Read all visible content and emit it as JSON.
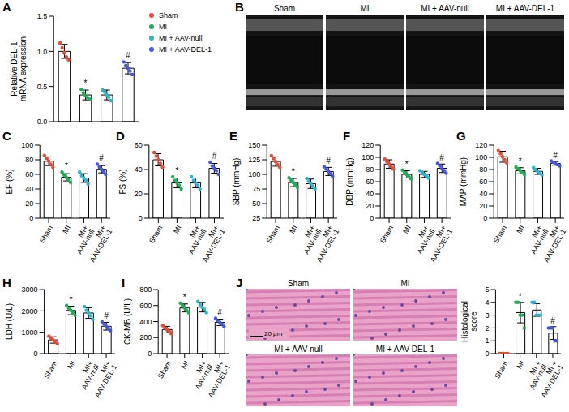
{
  "chart_data": [
    {
      "panel": "A",
      "type": "bar",
      "y_label": "Relative DEL-1 mRNA expression",
      "categories": [
        "Sham",
        "MI",
        "MI + AAV-null",
        "MI + AAV-DEL-1"
      ],
      "values": [
        1.0,
        0.38,
        0.38,
        0.76
      ],
      "errors": [
        0.1,
        0.07,
        0.07,
        0.08
      ],
      "points": [
        [
          1.12,
          1.05,
          0.98,
          0.92,
          0.88
        ],
        [
          0.46,
          0.41,
          0.37,
          0.34,
          0.32
        ],
        [
          0.45,
          0.42,
          0.38,
          0.35,
          0.3
        ],
        [
          0.85,
          0.8,
          0.76,
          0.72,
          0.67
        ]
      ],
      "colors": [
        "#e64b35",
        "#1fae55",
        "#2cb5c9",
        "#4457d8"
      ],
      "annotations": [
        null,
        "*",
        null,
        "#"
      ],
      "ylim": [
        0,
        1.5
      ],
      "yticks": [
        {
          "value": 0,
          "label": "0.0"
        },
        0.5,
        {
          "value": 1,
          "label": "1.0"
        },
        1.5
      ],
      "tick_labels": "y",
      "legend": "right"
    },
    {
      "panel": "C",
      "type": "bar",
      "y_label": "EF (%)",
      "categories": [
        "Sham",
        "MI",
        "MI+ AAV-null",
        "MI+ AAV-DEL-1"
      ],
      "values": [
        78,
        56,
        55,
        67
      ],
      "errors": [
        6,
        5,
        6,
        5
      ],
      "points": [
        [
          86,
          82,
          78,
          74,
          70
        ],
        [
          63,
          59,
          56,
          53,
          49
        ],
        [
          63,
          58,
          55,
          52,
          47
        ],
        [
          74,
          70,
          67,
          64,
          60
        ]
      ],
      "colors": [
        "#e64b35",
        "#1fae55",
        "#2cb5c9",
        "#4457d8"
      ],
      "annotations": [
        null,
        "*",
        null,
        "#"
      ],
      "ylim": [
        0,
        100
      ],
      "yticks": [
        0,
        20,
        40,
        60,
        80,
        100
      ]
    },
    {
      "panel": "D",
      "type": "bar",
      "y_label": "FS (%)",
      "categories": [
        "Sham",
        "MI",
        "MI+ AAV-null",
        "MI+ AAV-DEL-1"
      ],
      "values": [
        48,
        29,
        29,
        41
      ],
      "errors": [
        5,
        4,
        4,
        4
      ],
      "points": [
        [
          54,
          51,
          48,
          45,
          42
        ],
        [
          34,
          31,
          29,
          27,
          24
        ],
        [
          34,
          31,
          29,
          27,
          24
        ],
        [
          46,
          43,
          41,
          39,
          36
        ]
      ],
      "colors": [
        "#e64b35",
        "#1fae55",
        "#2cb5c9",
        "#4457d8"
      ],
      "annotations": [
        null,
        "*",
        null,
        "#"
      ],
      "ylim": [
        0,
        60
      ],
      "yticks": [
        0,
        20,
        40,
        60
      ]
    },
    {
      "panel": "E",
      "type": "bar",
      "y_label": "SBP (mmHg)",
      "categories": [
        "Sham",
        "MI",
        "MI+ AAV-null",
        "MI+ AAV-DEL-1"
      ],
      "values": [
        122,
        86,
        84,
        105
      ],
      "errors": [
        8,
        7,
        8,
        7
      ],
      "points": [
        [
          132,
          127,
          122,
          117,
          112
        ],
        [
          94,
          90,
          86,
          82,
          78
        ],
        [
          93,
          88,
          84,
          80,
          75
        ],
        [
          113,
          109,
          105,
          101,
          97
        ]
      ],
      "colors": [
        "#e64b35",
        "#1fae55",
        "#2cb5c9",
        "#4457d8"
      ],
      "annotations": [
        null,
        "*",
        null,
        "#"
      ],
      "ylim": [
        25,
        150
      ],
      "yticks": [
        25,
        50,
        75,
        100,
        125,
        150
      ]
    },
    {
      "panel": "F",
      "type": "bar",
      "y_label": "DBP (mmHg)",
      "categories": [
        "Sham",
        "MI",
        "MI+ AAV-null",
        "MI+ AAV-DEL-1"
      ],
      "values": [
        89,
        72,
        72,
        82
      ],
      "errors": [
        7,
        6,
        5,
        7
      ],
      "points": [
        [
          97,
          93,
          89,
          85,
          81
        ],
        [
          79,
          75,
          72,
          69,
          65
        ],
        [
          78,
          75,
          72,
          69,
          66
        ],
        [
          90,
          86,
          82,
          78,
          74
        ]
      ],
      "colors": [
        "#e64b35",
        "#1fae55",
        "#2cb5c9",
        "#4457d8"
      ],
      "annotations": [
        null,
        "*",
        null,
        "#"
      ],
      "ylim": [
        0,
        120
      ],
      "yticks": [
        0,
        20,
        40,
        60,
        80,
        100,
        120
      ]
    },
    {
      "panel": "G",
      "type": "bar",
      "y_label": "MAP (mmHg)",
      "categories": [
        "Sham",
        "MI",
        "MI+ AAV-null",
        "MI+ AAV-DEL-1"
      ],
      "values": [
        101,
        78,
        77,
        90
      ],
      "errors": [
        9,
        5,
        5,
        3
      ],
      "points": [
        [
          111,
          106,
          101,
          96,
          91
        ],
        [
          84,
          81,
          78,
          75,
          72
        ],
        [
          83,
          80,
          77,
          74,
          71
        ],
        [
          94,
          92,
          90,
          88,
          86
        ]
      ],
      "colors": [
        "#e64b35",
        "#1fae55",
        "#2cb5c9",
        "#4457d8"
      ],
      "annotations": [
        null,
        "*",
        null,
        "#"
      ],
      "ylim": [
        0,
        120
      ],
      "yticks": [
        0,
        20,
        40,
        60,
        80,
        100,
        120
      ]
    },
    {
      "panel": "H",
      "type": "bar",
      "y_label": "LDH (U/L)",
      "categories": [
        "Sham",
        "MI",
        "MI+ AAV-null",
        "MI+ AAV-DEL-1"
      ],
      "values": [
        640,
        2020,
        1900,
        1280
      ],
      "errors": [
        150,
        200,
        250,
        180
      ],
      "points": [
        [
          820,
          720,
          640,
          560,
          460
        ],
        [
          2250,
          2130,
          2020,
          1910,
          1790
        ],
        [
          2200,
          2030,
          1900,
          1770,
          1600
        ],
        [
          1490,
          1380,
          1280,
          1180,
          1070
        ]
      ],
      "colors": [
        "#e64b35",
        "#1fae55",
        "#2cb5c9",
        "#4457d8"
      ],
      "annotations": [
        null,
        "*",
        null,
        "#"
      ],
      "ylim": [
        0,
        3000
      ],
      "yticks": [
        0,
        1000,
        2000,
        3000
      ]
    },
    {
      "panel": "I",
      "type": "bar",
      "y_label": "CK-MB (U/L)",
      "categories": [
        "Sham",
        "MI",
        "MI+ AAV-null",
        "MI+ AAV-DEL-1"
      ],
      "values": [
        300,
        570,
        580,
        390
      ],
      "errors": [
        40,
        50,
        60,
        40
      ],
      "points": [
        [
          350,
          320,
          300,
          280,
          250
        ],
        [
          630,
          600,
          570,
          540,
          510
        ],
        [
          650,
          610,
          580,
          550,
          510
        ],
        [
          440,
          410,
          390,
          370,
          340
        ]
      ],
      "colors": [
        "#e64b35",
        "#1fae55",
        "#2cb5c9",
        "#4457d8"
      ],
      "annotations": [
        null,
        "*",
        null,
        "#"
      ],
      "ylim": [
        0,
        800
      ],
      "yticks": [
        0,
        200,
        400,
        600,
        800
      ]
    },
    {
      "panel": "J",
      "type": "bar",
      "y_label": "Histological score",
      "categories": [
        "Sham",
        "MI",
        "MI + AAV-null",
        "MI + AAV-DEL-1"
      ],
      "values": [
        0,
        3.2,
        3.4,
        1.6
      ],
      "errors": [
        0,
        0.8,
        0.5,
        0.5
      ],
      "points": [
        [
          0,
          0,
          0,
          0,
          0
        ],
        [
          4,
          4,
          3,
          3,
          2
        ],
        [
          4,
          4,
          3,
          3,
          3
        ],
        [
          2,
          2,
          2,
          1,
          1
        ]
      ],
      "colors": [
        "#e64b35",
        "#1fae55",
        "#2cb5c9",
        "#4457d8"
      ],
      "annotations": [
        null,
        "*",
        null,
        "#"
      ],
      "ylim": [
        0,
        5
      ],
      "yticks": [
        0,
        1,
        2,
        3,
        4,
        5
      ]
    }
  ],
  "image_panels": [
    {
      "panel": "B",
      "labels": [
        "Sham",
        "MI",
        "MI + AAV-null",
        "MI + AAV-DEL-1"
      ]
    },
    {
      "panel": "J",
      "labels": [
        "Sham",
        "MI",
        "MI + AAV-null",
        "MI + AAV-DEL-1"
      ],
      "scale_bar": "20 μm"
    }
  ]
}
